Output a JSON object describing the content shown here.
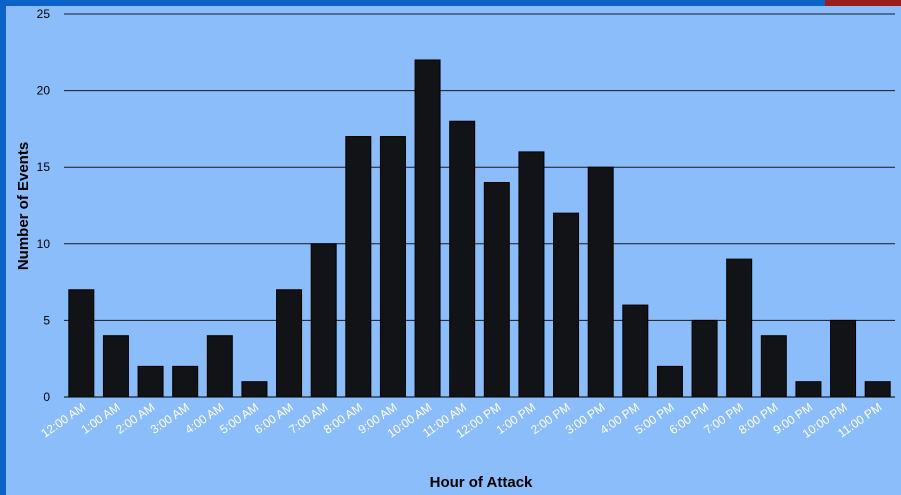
{
  "chart_data": {
    "type": "bar",
    "title": "",
    "xlabel": "Hour of Attack",
    "ylabel": "Number of Events",
    "ylim": [
      0,
      25
    ],
    "yticks": [
      0,
      5,
      10,
      15,
      20,
      25
    ],
    "grid": true,
    "colors": {
      "bar": "#111316",
      "grid": "#1a1a1a",
      "background": "#8cbdfb",
      "frame": "#0b63c9"
    },
    "categories": [
      "12:00 AM",
      "1:00 AM",
      "2:00 AM",
      "3:00 AM",
      "4:00 AM",
      "5:00 AM",
      "6:00 AM",
      "7:00 AM",
      "8:00 AM",
      "9:00 AM",
      "10:00 AM",
      "11:00 AM",
      "12:00 PM",
      "1:00 PM",
      "2:00 PM",
      "3:00 PM",
      "4:00 PM",
      "5:00 PM",
      "6:00 PM",
      "7:00 PM",
      "8:00 PM",
      "9:00 PM",
      "10:00 PM",
      "11:00 PM"
    ],
    "values": [
      7,
      4,
      2,
      2,
      4,
      1,
      7,
      10,
      17,
      17,
      22,
      18,
      14,
      16,
      12,
      15,
      6,
      2,
      5,
      9,
      4,
      1,
      5,
      1
    ]
  }
}
